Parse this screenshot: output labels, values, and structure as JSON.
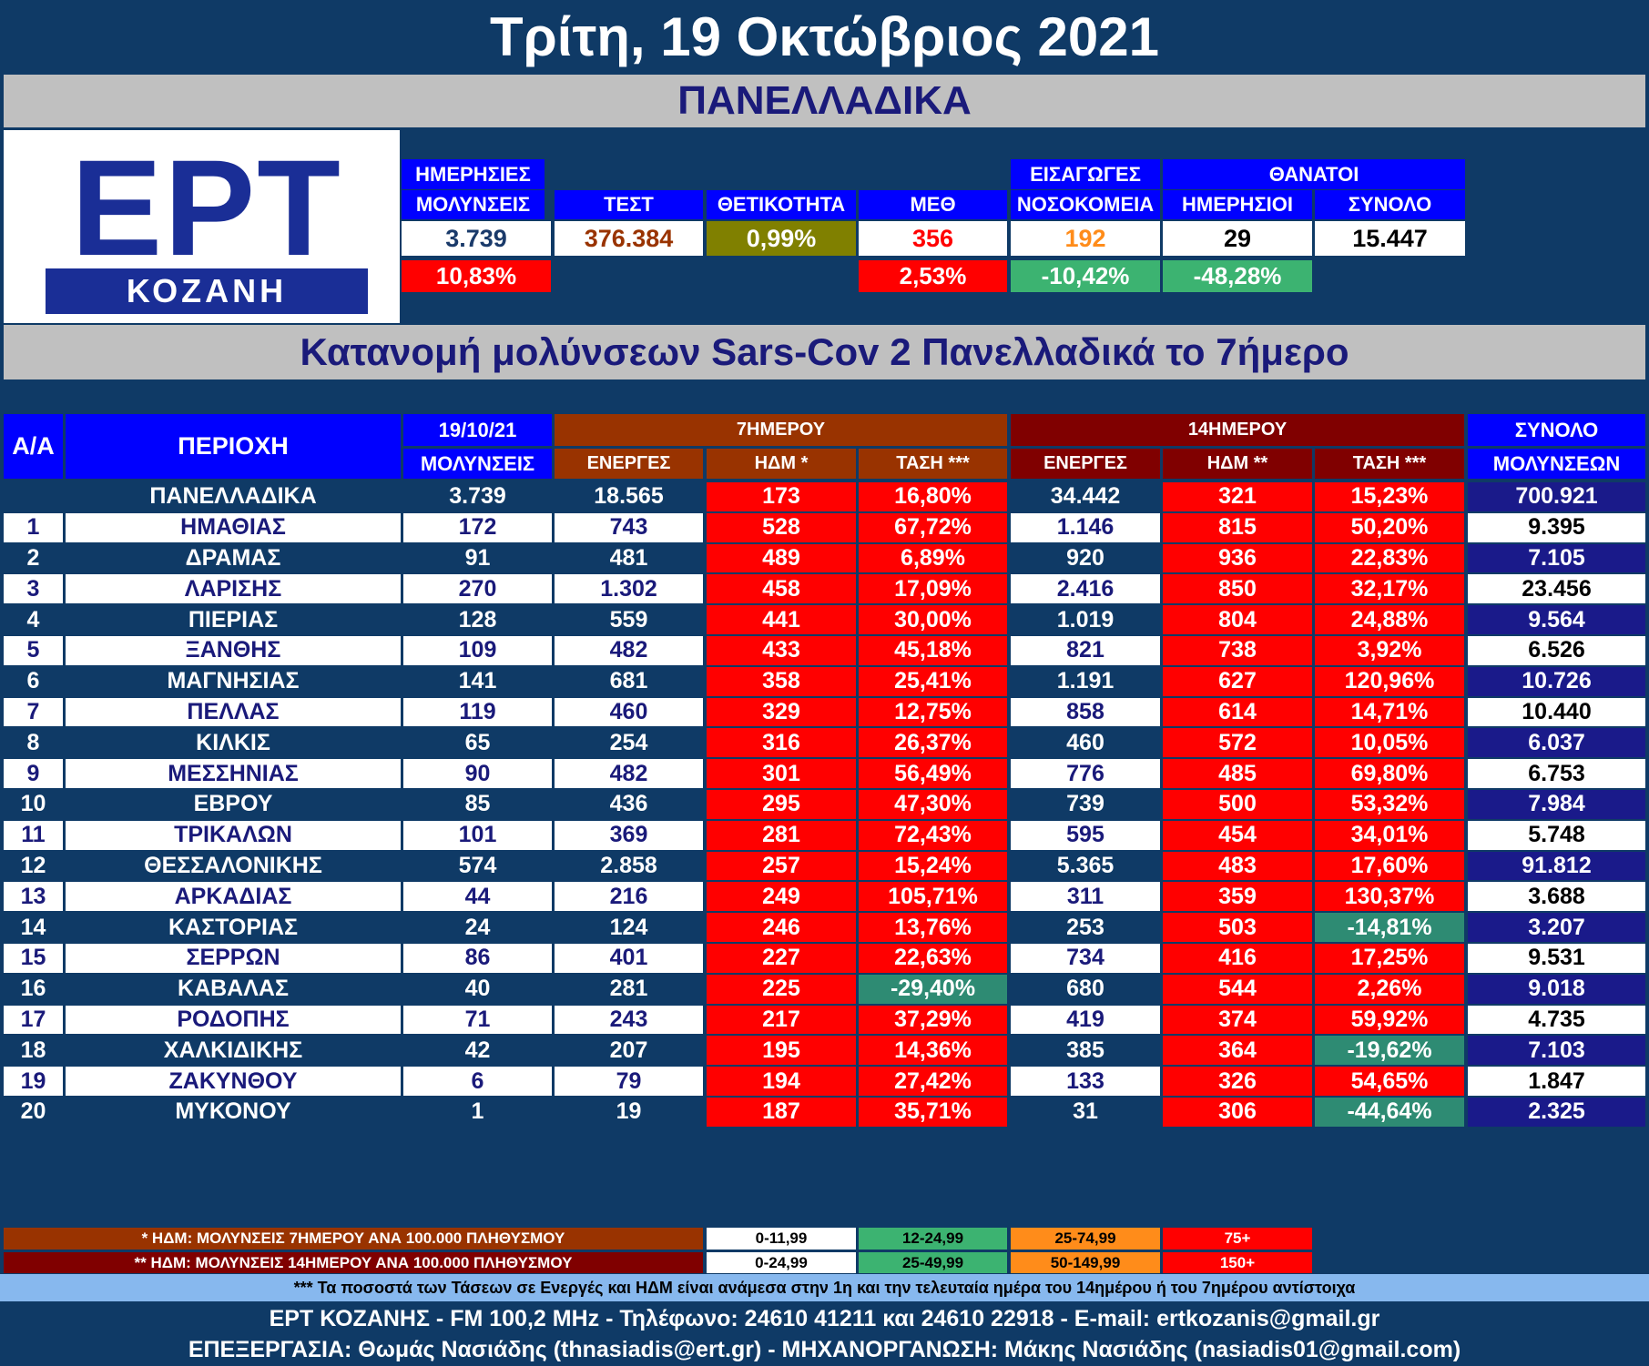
{
  "title": "Τρίτη, 19 Οκτώβριος 2021",
  "region": "ΠΑΝΕΛΛΑΔΙΚΑ",
  "logo": {
    "text": "ΕΡΤ",
    "subtext": "ΚΟΖΑΝΗ"
  },
  "summary": {
    "daily_top": "ΗΜΕΡΗΣΙΕΣ",
    "daily": "ΜΟΛΥΝΣΕΙΣ",
    "tests": "ΤΕΣΤ",
    "positivity": "ΘΕΤΙΚΟΤΗΤΑ",
    "icu": "ΜΕΘ",
    "admissions_top": "ΕΙΣΑΓΩΓΕΣ",
    "admissions": "ΝΟΣΟΚΟΜΕΙΑ",
    "deaths_top": "ΘΑΝΑΤΟΙ",
    "deaths_daily": "ΗΜΕΡΗΣΙΟΙ",
    "deaths_total": "ΣΥΝΟΛΟ",
    "v_daily": "3.739",
    "v_tests": "376.384",
    "v_positivity": "0,99%",
    "v_icu": "356",
    "v_admissions": "192",
    "v_deaths_daily": "29",
    "v_deaths_total": "15.447",
    "c_daily": "10,83%",
    "c_icu": "2,53%",
    "c_admissions": "-10,42%",
    "c_deaths": "-48,28%"
  },
  "section_title": "Κατανομή μολύνσεων Sars-Cov 2 Πανελλαδικά το 7ήμερο",
  "table": {
    "h_aa": "Α/Α",
    "h_area": "ΠΕΡΙΟΧΗ",
    "h_date": "19/10/21",
    "h_cases": "ΜΟΛΥΝΣΕΙΣ",
    "h_7day": "7ΗΜΕΡΟΥ",
    "h_14day": "14ΗΜΕΡΟΥ",
    "h_total_top": "ΣΥΝΟΛΟ",
    "h_total": "ΜΟΛΥΝΣΕΩΝ",
    "h_active": "ΕΝΕΡΓΕΣ",
    "h_hdm7": "ΗΔΜ *",
    "h_trend": "ΤΑΣΗ ***",
    "h_hdm14": "ΗΔΜ **",
    "national": [
      "",
      "ΠΑΝΕΛΛΑΔΙΚΑ",
      "3.739",
      "18.565",
      "173",
      "16,80%",
      "34.442",
      "321",
      "15,23%",
      "700.921"
    ],
    "rows": [
      [
        "1",
        "ΗΜΑΘΙΑΣ",
        "172",
        "743",
        "528",
        "67,72%",
        "1.146",
        "815",
        "50,20%",
        "9.395"
      ],
      [
        "2",
        "ΔΡΑΜΑΣ",
        "91",
        "481",
        "489",
        "6,89%",
        "920",
        "936",
        "22,83%",
        "7.105"
      ],
      [
        "3",
        "ΛΑΡΙΣΗΣ",
        "270",
        "1.302",
        "458",
        "17,09%",
        "2.416",
        "850",
        "32,17%",
        "23.456"
      ],
      [
        "4",
        "ΠΙΕΡΙΑΣ",
        "128",
        "559",
        "441",
        "30,00%",
        "1.019",
        "804",
        "24,88%",
        "9.564"
      ],
      [
        "5",
        "ΞΑΝΘΗΣ",
        "109",
        "482",
        "433",
        "45,18%",
        "821",
        "738",
        "3,92%",
        "6.526"
      ],
      [
        "6",
        "ΜΑΓΝΗΣΙΑΣ",
        "141",
        "681",
        "358",
        "25,41%",
        "1.191",
        "627",
        "120,96%",
        "10.726"
      ],
      [
        "7",
        "ΠΕΛΛΑΣ",
        "119",
        "460",
        "329",
        "12,75%",
        "858",
        "614",
        "14,71%",
        "10.440"
      ],
      [
        "8",
        "ΚΙΛΚΙΣ",
        "65",
        "254",
        "316",
        "26,37%",
        "460",
        "572",
        "10,05%",
        "6.037"
      ],
      [
        "9",
        "ΜΕΣΣΗΝΙΑΣ",
        "90",
        "482",
        "301",
        "56,49%",
        "776",
        "485",
        "69,80%",
        "6.753"
      ],
      [
        "10",
        "ΕΒΡΟΥ",
        "85",
        "436",
        "295",
        "47,30%",
        "739",
        "500",
        "53,32%",
        "7.984"
      ],
      [
        "11",
        "ΤΡΙΚΑΛΩΝ",
        "101",
        "369",
        "281",
        "72,43%",
        "595",
        "454",
        "34,01%",
        "5.748"
      ],
      [
        "12",
        "ΘΕΣΣΑΛΟΝΙΚΗΣ",
        "574",
        "2.858",
        "257",
        "15,24%",
        "5.365",
        "483",
        "17,60%",
        "91.812"
      ],
      [
        "13",
        "ΑΡΚΑΔΙΑΣ",
        "44",
        "216",
        "249",
        "105,71%",
        "311",
        "359",
        "130,37%",
        "3.688"
      ],
      [
        "14",
        "ΚΑΣΤΟΡΙΑΣ",
        "24",
        "124",
        "246",
        "13,76%",
        "253",
        "503",
        "-14,81%",
        "3.207"
      ],
      [
        "15",
        "ΣΕΡΡΩΝ",
        "86",
        "401",
        "227",
        "22,63%",
        "734",
        "416",
        "17,25%",
        "9.531"
      ],
      [
        "16",
        "ΚΑΒΑΛΑΣ",
        "40",
        "281",
        "225",
        "-29,40%",
        "680",
        "544",
        "2,26%",
        "9.018"
      ],
      [
        "17",
        "ΡΟΔΟΠΗΣ",
        "71",
        "243",
        "217",
        "37,29%",
        "419",
        "374",
        "59,92%",
        "4.735"
      ],
      [
        "18",
        "ΧΑΛΚΙΔΙΚΗΣ",
        "42",
        "207",
        "195",
        "14,36%",
        "385",
        "364",
        "-19,62%",
        "7.103"
      ],
      [
        "19",
        "ΖΑΚΥΝΘΟΥ",
        "6",
        "79",
        "194",
        "27,42%",
        "133",
        "326",
        "54,65%",
        "1.847"
      ],
      [
        "20",
        "ΜΥΚΟΝΟΥ",
        "1",
        "19",
        "187",
        "35,71%",
        "31",
        "306",
        "-44,64%",
        "2.325"
      ]
    ]
  },
  "legend": {
    "note7": "* ΗΔΜ: ΜΟΛΥΝΣΕΙΣ 7ΗΜΕΡΟΥ ΑΝΑ 100.000 ΠΛΗΘΥΣΜΟΥ",
    "note14": "** ΗΔΜ: ΜΟΛΥΝΣΕΙΣ 14ΗΜΕΡΟΥ ΑΝΑ 100.000 ΠΛΗΘΥΣΜΟΥ",
    "r7": [
      "0-11,99",
      "12-24,99",
      "25-74,99",
      "75+"
    ],
    "r14": [
      "0-24,99",
      "25-49,99",
      "50-149,99",
      "150+"
    ],
    "colors": [
      "#ffffff",
      "#3cb371",
      "#ff8c1a",
      "#ff0000"
    ]
  },
  "footnote": "*** Τα ποσοστά των Τάσεων σε Ενεργές και ΗΔΜ είναι ανάμεσα στην 1η και την τελευταία ημέρα του 14ημέρου ή του 7ημέρου αντίστοιχα",
  "footer1": "ΕΡΤ ΚΟΖΑΝΗΣ - FM 100,2 MHz - Τηλέφωνο:  24610 41211 και 24610 22918 - E-mail: ertkozanis@gmail.gr",
  "footer2": "ΕΠΕΞΕΡΓΑΣΙΑ: Θωμάς Νασιάδης (thnasiadis@ert.gr) - ΜΗΧΑΝΟΡΓΑΝΩΣΗ: Μάκης Νασιάδης (nasiadis01@gmail.com)",
  "colors": {
    "background": "#0f3a66",
    "header_blue": "#0000ff",
    "red": "#ff0000",
    "green": "#2e8b73",
    "navy_total": "#1a1a8a",
    "positivity": "#808000",
    "tests_text": "#993300",
    "admissions_text": "#ff8c1a"
  }
}
